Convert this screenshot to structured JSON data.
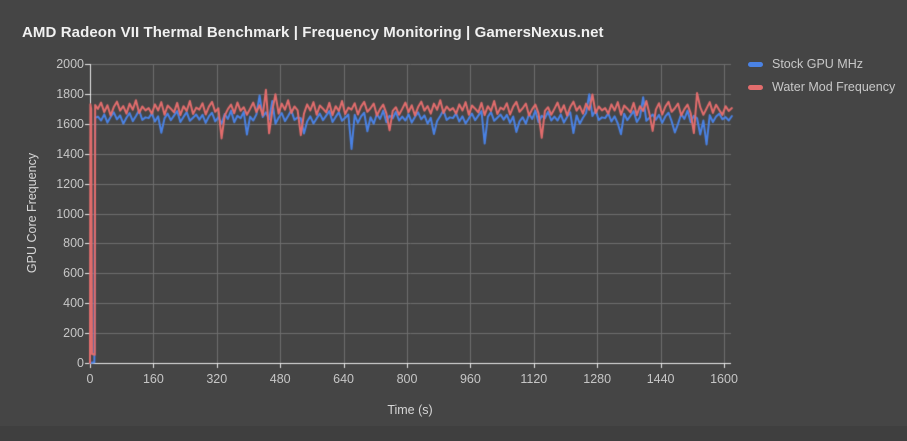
{
  "header": {
    "title": "AMD Radeon VII Thermal Benchmark | Frequency Monitoring | GamersNexus.net"
  },
  "colors": {
    "background": "#454545",
    "footer_strip": "#3f3f3f",
    "grid": "#6e6e6e",
    "axis_line": "#e8e8e8",
    "tick_text": "#c6c6c6",
    "title_text": "#f0f0f0",
    "stock_blue": "#4a82e4",
    "water_red": "#e26d6d"
  },
  "chart_data": {
    "type": "line",
    "title": "AMD Radeon VII Thermal Benchmark | Frequency Monitoring | GamersNexus.net",
    "xlabel": "Time (s)",
    "ylabel": "GPU Core Frequency",
    "xlim": [
      0,
      1600
    ],
    "ylim": [
      0,
      2000
    ],
    "x_ticks": [
      0,
      160,
      320,
      480,
      640,
      800,
      960,
      1120,
      1280,
      1440,
      1600
    ],
    "y_ticks": [
      0,
      200,
      400,
      600,
      800,
      1000,
      1200,
      1400,
      1600,
      1800,
      2000
    ],
    "grid": true,
    "legend_position": "right-top",
    "series": [
      {
        "name": "Stock GPU MHz",
        "color": "#4a82e4",
        "head_x": [
          0,
          11,
          13
        ],
        "head_y": [
          0,
          5,
          1640
        ],
        "x_start": 20,
        "x_step": 8,
        "values": [
          1648,
          1622,
          1663,
          1608,
          1645,
          1677,
          1630,
          1656,
          1601,
          1640,
          1672,
          1618,
          1652,
          1690,
          1625,
          1643,
          1638,
          1670,
          1615,
          1650,
          1540,
          1636,
          1668,
          1624,
          1655,
          1685,
          1612,
          1646,
          1678,
          1620,
          1641,
          1662,
          1628,
          1660,
          1606,
          1649,
          1674,
          1616,
          1644,
          1600,
          1666,
          1632,
          1688,
          1610,
          1654,
          1637,
          1680,
          1528,
          1648,
          1622,
          1663,
          1790,
          1645,
          1677,
          1630,
          1752,
          1601,
          1640,
          1672,
          1618,
          1652,
          1690,
          1625,
          1643,
          1638,
          1535,
          1615,
          1650,
          1602,
          1636,
          1668,
          1624,
          1655,
          1685,
          1612,
          1646,
          1678,
          1620,
          1641,
          1662,
          1432,
          1660,
          1606,
          1649,
          1674,
          1550,
          1644,
          1600,
          1666,
          1632,
          1688,
          1610,
          1654,
          1637,
          1680,
          1622,
          1648,
          1622,
          1663,
          1608,
          1645,
          1677,
          1630,
          1656,
          1601,
          1640,
          1532,
          1618,
          1652,
          1690,
          1625,
          1643,
          1638,
          1670,
          1615,
          1650,
          1602,
          1636,
          1668,
          1624,
          1655,
          1685,
          1468,
          1646,
          1678,
          1620,
          1641,
          1662,
          1628,
          1660,
          1606,
          1649,
          1545,
          1616,
          1644,
          1600,
          1666,
          1632,
          1688,
          1610,
          1654,
          1637,
          1680,
          1622,
          1648,
          1622,
          1663,
          1608,
          1645,
          1677,
          1538,
          1656,
          1601,
          1640,
          1672,
          1798,
          1652,
          1690,
          1625,
          1643,
          1638,
          1670,
          1615,
          1650,
          1602,
          1530,
          1668,
          1624,
          1655,
          1685,
          1612,
          1646,
          1778,
          1620,
          1641,
          1662,
          1628,
          1660,
          1606,
          1649,
          1674,
          1616,
          1542,
          1600,
          1666,
          1632,
          1688,
          1610,
          1654,
          1637,
          1528,
          1622,
          1462,
          1658,
          1612,
          1649,
          1668,
          1630,
          1645,
          1622,
          1652
        ]
      },
      {
        "name": "Water Mod Frequency",
        "color": "#e26d6d",
        "head_x": [
          0,
          1,
          3,
          5,
          12,
          13
        ],
        "head_y": [
          0,
          1730,
          1700,
          60,
          55,
          1725
        ],
        "x_start": 20,
        "x_step": 8,
        "values": [
          1700,
          1742,
          1678,
          1724,
          1655,
          1712,
          1748,
          1688,
          1719,
          1668,
          1735,
          1694,
          1758,
          1672,
          1716,
          1690,
          1705,
          1668,
          1730,
          1689,
          1745,
          1660,
          1722,
          1701,
          1676,
          1740,
          1658,
          1718,
          1686,
          1752,
          1665,
          1708,
          1695,
          1738,
          1662,
          1715,
          1747,
          1680,
          1704,
          1502,
          1656,
          1698,
          1728,
          1670,
          1743,
          1687,
          1711,
          1660,
          1700,
          1742,
          1678,
          1724,
          1655,
          1828,
          1536,
          1688,
          1798,
          1668,
          1735,
          1694,
          1758,
          1672,
          1716,
          1690,
          1524,
          1668,
          1730,
          1689,
          1745,
          1660,
          1722,
          1701,
          1676,
          1740,
          1658,
          1718,
          1686,
          1752,
          1665,
          1708,
          1695,
          1738,
          1662,
          1715,
          1747,
          1680,
          1704,
          1736,
          1656,
          1698,
          1728,
          1670,
          1556,
          1687,
          1711,
          1660,
          1700,
          1742,
          1678,
          1724,
          1655,
          1712,
          1748,
          1688,
          1719,
          1668,
          1735,
          1694,
          1758,
          1672,
          1716,
          1690,
          1705,
          1668,
          1730,
          1689,
          1745,
          1660,
          1722,
          1701,
          1676,
          1740,
          1658,
          1718,
          1686,
          1752,
          1665,
          1708,
          1695,
          1738,
          1662,
          1715,
          1747,
          1680,
          1704,
          1736,
          1656,
          1698,
          1728,
          1670,
          1506,
          1687,
          1711,
          1660,
          1700,
          1742,
          1678,
          1724,
          1655,
          1712,
          1748,
          1688,
          1719,
          1668,
          1735,
          1694,
          1796,
          1672,
          1716,
          1690,
          1705,
          1668,
          1730,
          1689,
          1745,
          1660,
          1722,
          1701,
          1676,
          1740,
          1658,
          1718,
          1686,
          1752,
          1665,
          1552,
          1695,
          1738,
          1662,
          1715,
          1747,
          1680,
          1704,
          1736,
          1656,
          1698,
          1728,
          1670,
          1538,
          1806,
          1711,
          1660,
          1702,
          1745,
          1673,
          1728,
          1692,
          1660,
          1718,
          1686,
          1705
        ]
      }
    ]
  }
}
